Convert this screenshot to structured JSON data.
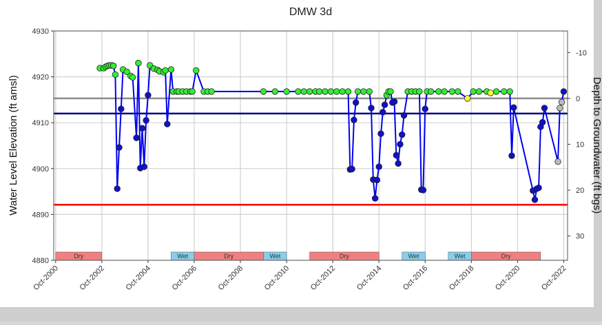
{
  "chart_data": {
    "type": "line",
    "title": "DMW 3d",
    "y_label": "Water Level Elevation (ft amsl)",
    "y2_label": "Depth to Groundwater (ft bgs)",
    "xlim": [
      "2000-09",
      "2022-12"
    ],
    "xticks": [
      {
        "value": "2000-10",
        "label": "Oct-2000"
      },
      {
        "value": "2002-10",
        "label": "Oct-2002"
      },
      {
        "value": "2004-10",
        "label": "Oct-2004"
      },
      {
        "value": "2006-10",
        "label": "Oct-2006"
      },
      {
        "value": "2008-10",
        "label": "Oct-2008"
      },
      {
        "value": "2010-10",
        "label": "Oct-2010"
      },
      {
        "value": "2012-10",
        "label": "Oct-2012"
      },
      {
        "value": "2014-10",
        "label": "Oct-2014"
      },
      {
        "value": "2016-10",
        "label": "Oct-2016"
      },
      {
        "value": "2018-10",
        "label": "Oct-2018"
      },
      {
        "value": "2020-10",
        "label": "Oct-2020"
      },
      {
        "value": "2022-10",
        "label": "Oct-2022"
      }
    ],
    "ylim": [
      4880,
      4930
    ],
    "yticks": [
      4880,
      4890,
      4900,
      4910,
      4920,
      4930
    ],
    "y2lim": [
      35.3,
      -14.7
    ],
    "y2ticks": [
      -10,
      0,
      10,
      20,
      30
    ],
    "grid": true,
    "reference_lines": [
      {
        "value": 4915.3,
        "color": "#8c8c8c"
      },
      {
        "value": 4912.0,
        "color": "#00007f"
      },
      {
        "value": 4892.1,
        "color": "#ff0000"
      }
    ],
    "periods": [
      {
        "label": "Dry",
        "start": "2000-10",
        "end": "2002-10",
        "color": "#f08080"
      },
      {
        "label": "Wet",
        "start": "2005-10",
        "end": "2006-10",
        "color": "#87ceeb"
      },
      {
        "label": "Dry",
        "start": "2006-10",
        "end": "2009-10",
        "color": "#f08080"
      },
      {
        "label": "Wet",
        "start": "2009-10",
        "end": "2010-10",
        "color": "#87ceeb"
      },
      {
        "label": "Dry",
        "start": "2011-10",
        "end": "2014-10",
        "color": "#f08080"
      },
      {
        "label": "Wet",
        "start": "2015-10",
        "end": "2016-10",
        "color": "#87ceeb"
      },
      {
        "label": "Wet",
        "start": "2017-10",
        "end": "2018-10",
        "color": "#87ceeb"
      },
      {
        "label": "Dry",
        "start": "2018-10",
        "end": "2021-10",
        "color": "#f08080"
      }
    ],
    "x": [
      "2002-09",
      "2002-11",
      "2002-12",
      "2003-01",
      "2003-02",
      "2003-03",
      "2003-04",
      "2003-05",
      "2003-06",
      "2003-07",
      "2003-08",
      "2003-09",
      "2003-11",
      "2004-01",
      "2004-02",
      "2004-04",
      "2004-05",
      "2004-06",
      "2004-07",
      "2004-08",
      "2004-09",
      "2004-10",
      "2004-11",
      "2005-01",
      "2005-03",
      "2005-04",
      "2005-06",
      "2005-07",
      "2005-08",
      "2005-10",
      "2005-11",
      "2006-01",
      "2006-02",
      "2006-04",
      "2006-06",
      "2006-08",
      "2006-09",
      "2006-11",
      "2007-03",
      "2007-05",
      "2007-07",
      "2009-10",
      "2010-04",
      "2010-10",
      "2011-04",
      "2011-07",
      "2011-10",
      "2012-01",
      "2012-03",
      "2012-06",
      "2012-09",
      "2012-12",
      "2013-03",
      "2013-06",
      "2013-07",
      "2013-08",
      "2013-09",
      "2013-10",
      "2013-11",
      "2014-02",
      "2014-05",
      "2014-06",
      "2014-07",
      "2014-08",
      "2014-09",
      "2014-10",
      "2014-11",
      "2014-12",
      "2015-01",
      "2015-02",
      "2015-03",
      "2015-04",
      "2015-05",
      "2015-06",
      "2015-07",
      "2015-08",
      "2015-09",
      "2015-10",
      "2015-11",
      "2016-01",
      "2016-03",
      "2016-05",
      "2016-07",
      "2016-08",
      "2016-09",
      "2016-10",
      "2016-11",
      "2017-01",
      "2017-05",
      "2017-08",
      "2017-12",
      "2018-03",
      "2018-08",
      "2018-11",
      "2019-02",
      "2019-06",
      "2019-08",
      "2019-11",
      "2020-03",
      "2020-06",
      "2020-07",
      "2020-08",
      "2021-06",
      "2021-07",
      "2021-08",
      "2021-09",
      "2021-10",
      "2021-11",
      "2021-12",
      "2022-07",
      "2022-08",
      "2022-09",
      "2022-10"
    ],
    "series": [
      {
        "color": "#0000ee",
        "values": [
          4921.9,
          4921.9,
          4922.2,
          4922.4,
          4922.5,
          4922.5,
          4922.4,
          4920.5,
          4895.6,
          4904.6,
          4913,
          4921.6,
          4921.1,
          4920.2,
          4919.9,
          4906.7,
          4923,
          4900.1,
          4908.8,
          4900.4,
          4910.5,
          4916,
          4922.5,
          4921.8,
          4921.5,
          4921.2,
          4921,
          4921.4,
          4909.7,
          4921.6,
          4916.8,
          4916.8,
          4916.8,
          4916.8,
          4916.8,
          4916.8,
          4916.8,
          4921.4,
          4916.8,
          4916.8,
          4916.8,
          4916.8,
          4916.8,
          4916.8,
          4916.8,
          4916.8,
          4916.8,
          4916.8,
          4916.8,
          4916.8,
          4916.8,
          4916.8,
          4916.8,
          4916.8,
          4899.8,
          4899.9,
          4910.6,
          4914.4,
          4916.8,
          4916.8,
          4916.8,
          4913.2,
          4897.6,
          4893.5,
          4897.5,
          4900.4,
          4907.6,
          4912.3,
          4913.9,
          4916,
          4916.8,
          4916.8,
          4914.4,
          4914.6,
          4902.9,
          4901.1,
          4905.3,
          4907.4,
          4911.6,
          4916.8,
          4916.8,
          4916.8,
          4916.8,
          4895.4,
          4895.3,
          4913,
          4916.8,
          4916.8,
          4916.8,
          4916.8,
          4916.8,
          4916.8,
          4915.3,
          4916.8,
          4916.8,
          4916.8,
          4916.5,
          4916.8,
          4916.8,
          4916.8,
          4902.8,
          4913.3,
          4895.2,
          4893.2,
          4895.6,
          4895.8,
          4909.1,
          4910.1,
          4913.2,
          4901.5,
          4913.2,
          4914.5,
          4916.8
        ],
        "point_colors": [
          "#33ee33",
          "#33ee33",
          "#33ee33",
          "#33ee33",
          "#33ee33",
          "#33ee33",
          "#33ee33",
          "#33ee33",
          "#1010cc",
          "#1010cc",
          "#1010cc",
          "#33ee33",
          "#33ee33",
          "#33ee33",
          "#33ee33",
          "#1010cc",
          "#33ee33",
          "#1010cc",
          "#1010cc",
          "#1010cc",
          "#1010cc",
          "#1010cc",
          "#33ee33",
          "#33ee33",
          "#33ee33",
          "#33ee33",
          "#33ee33",
          "#33ee33",
          "#1010cc",
          "#33ee33",
          "#33ee33",
          "#33ee33",
          "#33ee33",
          "#33ee33",
          "#33ee33",
          "#33ee33",
          "#33ee33",
          "#33ee33",
          "#33ee33",
          "#33ee33",
          "#33ee33",
          "#33ee33",
          "#33ee33",
          "#33ee33",
          "#33ee33",
          "#33ee33",
          "#33ee33",
          "#33ee33",
          "#33ee33",
          "#33ee33",
          "#33ee33",
          "#33ee33",
          "#33ee33",
          "#33ee33",
          "#1010cc",
          "#1010cc",
          "#1010cc",
          "#1010cc",
          "#33ee33",
          "#33ee33",
          "#33ee33",
          "#1010cc",
          "#1010cc",
          "#1010cc",
          "#1010cc",
          "#1010cc",
          "#1010cc",
          "#1010cc",
          "#1010cc",
          "#33ee33",
          "#33ee33",
          "#33ee33",
          "#1010cc",
          "#1010cc",
          "#1010cc",
          "#1010cc",
          "#1010cc",
          "#1010cc",
          "#1010cc",
          "#33ee33",
          "#33ee33",
          "#33ee33",
          "#33ee33",
          "#1010cc",
          "#1010cc",
          "#1010cc",
          "#33ee33",
          "#33ee33",
          "#33ee33",
          "#33ee33",
          "#33ee33",
          "#33ee33",
          "#ffff33",
          "#33ee33",
          "#33ee33",
          "#33ee33",
          "#ffff33",
          "#33ee33",
          "#33ee33",
          "#33ee33",
          "#1010cc",
          "#1010cc",
          "#1010cc",
          "#1010cc",
          "#1010cc",
          "#1010cc",
          "#1010cc",
          "#1010cc",
          "#1010cc",
          "#bbbbbb",
          "#bbbbbb",
          "#bbbbbb",
          "#1010cc"
        ]
      }
    ]
  }
}
